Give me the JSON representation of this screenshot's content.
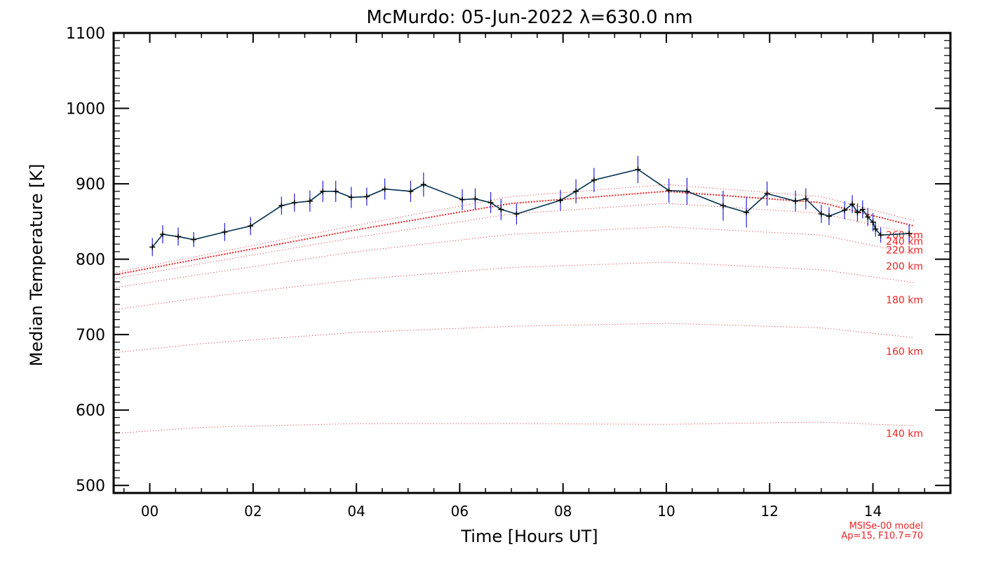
{
  "chart_data": {
    "type": "line",
    "title": "McMurdo: 05-Jun-2022 λ=630.0 nm",
    "xlabel": "Time [Hours UT]",
    "ylabel": "Median Temperature [K]",
    "xlim": [
      -0.7,
      15.5
    ],
    "ylim": [
      490,
      1100
    ],
    "xticks": [
      0,
      2,
      4,
      6,
      8,
      10,
      12,
      14
    ],
    "xtick_labels": [
      "00",
      "02",
      "04",
      "06",
      "08",
      "10",
      "12",
      "14"
    ],
    "yticks": [
      500,
      600,
      700,
      800,
      900,
      1000,
      1100
    ],
    "ytick_labels": [
      "500",
      "600",
      "700",
      "800",
      "900",
      "1000",
      "1100"
    ],
    "grid": false,
    "colors": {
      "observed_line": "#003050",
      "error_bars": "#2020dd",
      "markers": "#000000",
      "model": "#ee2222",
      "axes": "#000000"
    },
    "series": [
      {
        "type": "line_with_errorbars",
        "x": [
          0.05,
          0.25,
          0.55,
          0.85,
          1.45,
          1.95,
          2.55,
          2.8,
          3.1,
          3.35,
          3.6,
          3.9,
          4.2,
          4.55,
          5.05,
          5.3,
          6.05,
          6.3,
          6.6,
          6.8,
          7.1,
          7.95,
          8.25,
          8.6,
          9.45,
          10.05,
          10.4,
          11.1,
          11.55,
          11.95,
          12.5,
          12.7,
          13.0,
          13.15,
          13.45,
          13.6,
          13.7,
          13.8,
          13.9,
          14.0,
          14.05,
          14.15,
          14.7
        ],
        "y": [
          816,
          833,
          830,
          826,
          836,
          844,
          871,
          875,
          877,
          890,
          890,
          882,
          883,
          893,
          890,
          899,
          879,
          880,
          875,
          866,
          860,
          878,
          890,
          905,
          919,
          891,
          890,
          871,
          862,
          887,
          877,
          880,
          860,
          857,
          865,
          873,
          862,
          866,
          856,
          849,
          840,
          832,
          834
        ],
        "error": [
          12,
          12,
          12,
          10,
          12,
          12,
          12,
          12,
          14,
          14,
          14,
          14,
          12,
          14,
          14,
          16,
          14,
          14,
          14,
          14,
          14,
          14,
          16,
          16,
          18,
          16,
          18,
          20,
          20,
          16,
          14,
          14,
          12,
          12,
          12,
          12,
          12,
          12,
          12,
          12,
          10,
          10,
          12
        ]
      }
    ],
    "model_curves": [
      {
        "label": "140 km",
        "label_y": 569,
        "x": [
          -0.7,
          1,
          4,
          7,
          10,
          13,
          14.8
        ],
        "y": [
          569,
          577,
          582,
          582,
          581,
          584,
          579
        ],
        "dense": false
      },
      {
        "label": "160 km",
        "label_y": 678,
        "x": [
          -0.7,
          1,
          4,
          7,
          10,
          13,
          14.8
        ],
        "y": [
          676,
          688,
          703,
          711,
          715,
          709,
          696
        ],
        "dense": false
      },
      {
        "label": "180 km",
        "label_y": 746,
        "x": [
          -0.7,
          1,
          4,
          7,
          10,
          13,
          14.8
        ],
        "y": [
          733,
          749,
          773,
          789,
          796,
          786,
          769
        ],
        "dense": false
      },
      {
        "label": "200 km",
        "label_y": 791,
        "x": [
          -0.7,
          1,
          4,
          7,
          10,
          13,
          14.8
        ],
        "y": [
          762,
          780,
          810,
          833,
          843,
          832,
          807
        ],
        "dense": false
      },
      {
        "label": "220 km",
        "label_y": 812,
        "x": [
          -0.7,
          1,
          4,
          7,
          10,
          13,
          14.8
        ],
        "y": [
          774,
          794,
          829,
          860,
          874,
          861,
          833
        ],
        "dense": false
      },
      {
        "label": "240 km",
        "label_y": 824,
        "x": [
          -0.7,
          1,
          4,
          7,
          10,
          13,
          14.8
        ],
        "y": [
          779,
          801,
          839,
          874,
          890,
          875,
          844
        ],
        "dense": true
      },
      {
        "label": "260 km",
        "label_y": 832,
        "x": [
          -0.7,
          1,
          4,
          7,
          10,
          13,
          14.8
        ],
        "y": [
          782,
          805,
          845,
          883,
          899,
          883,
          851
        ],
        "dense": false
      }
    ],
    "model_note": [
      "MSISe-00 model",
      "Ap=15, F10.7=70"
    ]
  }
}
